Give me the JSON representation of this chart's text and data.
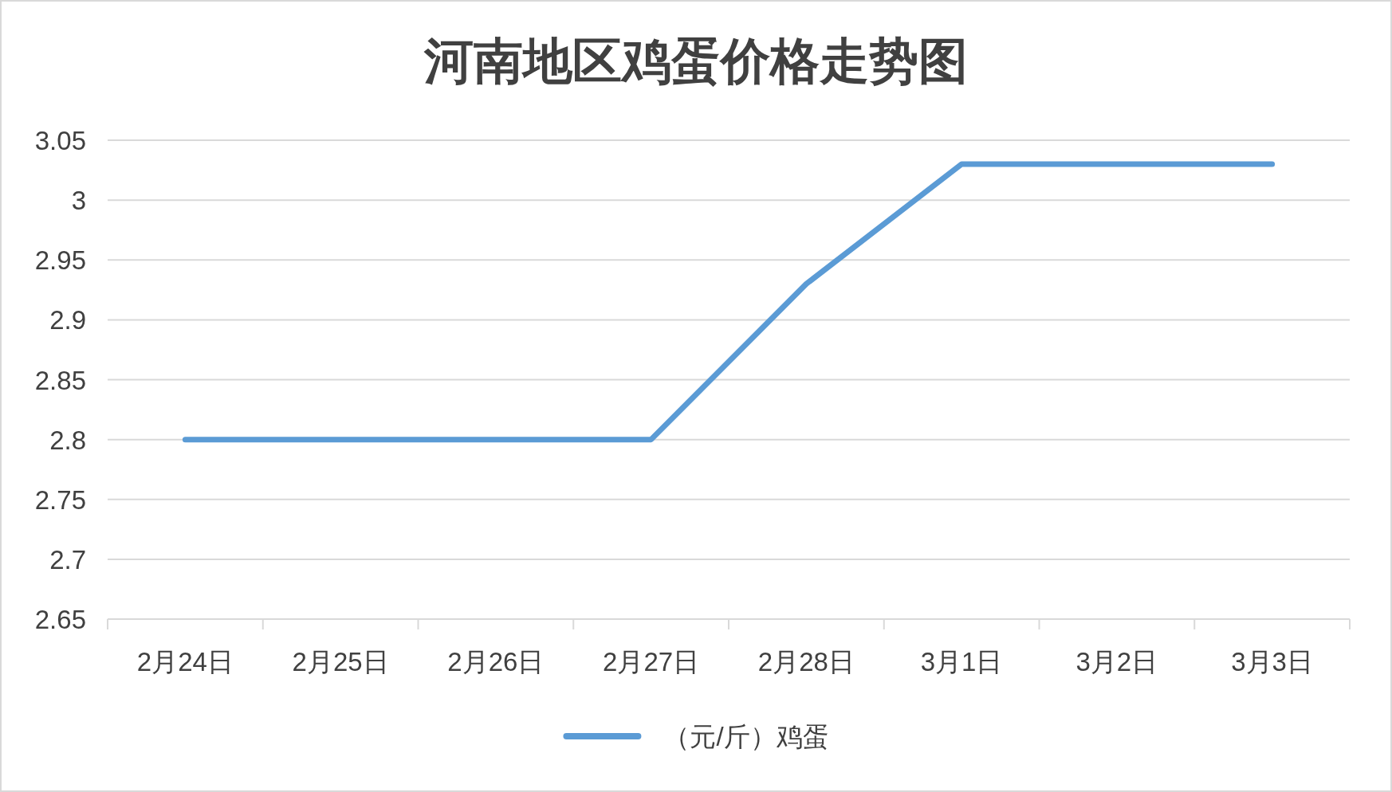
{
  "chart_data": {
    "type": "line",
    "title": "河南地区鸡蛋价格走势图",
    "categories": [
      "2月24日",
      "2月25日",
      "2月26日",
      "2月27日",
      "2月28日",
      "3月1日",
      "3月2日",
      "3月3日"
    ],
    "series": [
      {
        "name": "（元/斤）鸡蛋",
        "color": "#5b9bd5",
        "values": [
          2.8,
          2.8,
          2.8,
          2.8,
          2.93,
          3.03,
          3.03,
          3.03
        ]
      }
    ],
    "ylim": [
      2.65,
      3.05
    ],
    "yticks": [
      2.65,
      2.7,
      2.75,
      2.8,
      2.85,
      2.9,
      2.95,
      3,
      3.05
    ],
    "grid": "y",
    "legend": "bottom"
  }
}
